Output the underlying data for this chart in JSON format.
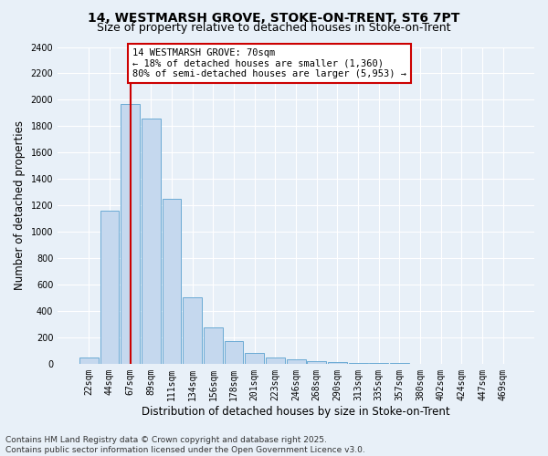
{
  "title_line1": "14, WESTMARSH GROVE, STOKE-ON-TRENT, ST6 7PT",
  "title_line2": "Size of property relative to detached houses in Stoke-on-Trent",
  "xlabel": "Distribution of detached houses by size in Stoke-on-Trent",
  "ylabel": "Number of detached properties",
  "footer_line1": "Contains HM Land Registry data © Crown copyright and database right 2025.",
  "footer_line2": "Contains public sector information licensed under the Open Government Licence v3.0.",
  "categories": [
    "22sqm",
    "44sqm",
    "67sqm",
    "89sqm",
    "111sqm",
    "134sqm",
    "156sqm",
    "178sqm",
    "201sqm",
    "223sqm",
    "246sqm",
    "268sqm",
    "290sqm",
    "313sqm",
    "335sqm",
    "357sqm",
    "380sqm",
    "402sqm",
    "424sqm",
    "447sqm",
    "469sqm"
  ],
  "values": [
    50,
    1160,
    1970,
    1860,
    1250,
    500,
    275,
    175,
    80,
    50,
    30,
    20,
    12,
    8,
    5,
    3,
    2,
    2,
    1,
    1,
    1
  ],
  "bar_color": "#c5d8ee",
  "bar_edge_color": "#6aaad4",
  "property_line_x": 2.0,
  "annotation_text": "14 WESTMARSH GROVE: 70sqm\n← 18% of detached houses are smaller (1,360)\n80% of semi-detached houses are larger (5,953) →",
  "annotation_box_color": "#ffffff",
  "annotation_edge_color": "#cc0000",
  "property_line_color": "#cc0000",
  "ylim": [
    0,
    2400
  ],
  "yticks": [
    0,
    200,
    400,
    600,
    800,
    1000,
    1200,
    1400,
    1600,
    1800,
    2000,
    2200,
    2400
  ],
  "background_color": "#e8f0f8",
  "grid_color": "#ffffff",
  "title_fontsize": 10,
  "subtitle_fontsize": 9,
  "tick_fontsize": 7,
  "label_fontsize": 8.5,
  "footer_fontsize": 6.5,
  "annotation_fontsize": 7.5
}
